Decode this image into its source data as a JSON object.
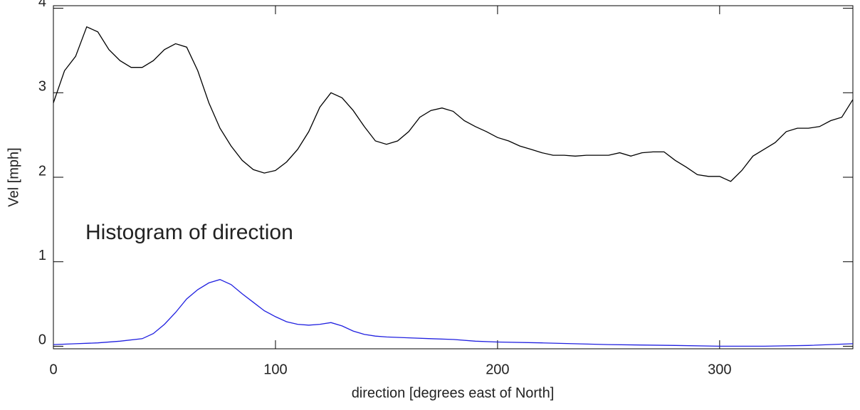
{
  "chart_data": {
    "type": "line",
    "xlabel": "direction [degrees east of North]",
    "ylabel": "Vel [mph]",
    "annotation": "Histogram of direction",
    "annotation_color": "#2020e0",
    "xlim": [
      0,
      360
    ],
    "xticks": [
      0,
      100,
      200,
      300
    ],
    "ylim": [
      -0.03,
      4.03
    ],
    "yticks": [
      0,
      1,
      2,
      3,
      4
    ],
    "series": [
      {
        "color": "#000000",
        "x": [
          0,
          5,
          10,
          15,
          20,
          25,
          30,
          35,
          40,
          45,
          50,
          55,
          60,
          65,
          70,
          75,
          80,
          85,
          90,
          95,
          100,
          105,
          110,
          115,
          120,
          125,
          130,
          135,
          140,
          145,
          150,
          155,
          160,
          165,
          170,
          175,
          180,
          185,
          190,
          195,
          200,
          205,
          210,
          215,
          220,
          225,
          230,
          235,
          240,
          245,
          250,
          255,
          260,
          265,
          270,
          275,
          280,
          285,
          290,
          295,
          300,
          305,
          310,
          315,
          320,
          325,
          330,
          335,
          340,
          345,
          350,
          355,
          360
        ],
        "values": [
          2.88,
          3.26,
          3.43,
          3.78,
          3.72,
          3.51,
          3.38,
          3.3,
          3.3,
          3.38,
          3.51,
          3.58,
          3.54,
          3.26,
          2.88,
          2.58,
          2.37,
          2.2,
          2.09,
          2.05,
          2.08,
          2.18,
          2.33,
          2.54,
          2.83,
          3.0,
          2.94,
          2.79,
          2.6,
          2.43,
          2.39,
          2.43,
          2.54,
          2.71,
          2.79,
          2.82,
          2.78,
          2.67,
          2.6,
          2.54,
          2.47,
          2.43,
          2.37,
          2.33,
          2.29,
          2.26,
          2.26,
          2.25,
          2.26,
          2.26,
          2.26,
          2.29,
          2.25,
          2.29,
          2.3,
          2.3,
          2.2,
          2.12,
          2.03,
          2.01,
          2.01,
          1.95,
          2.08,
          2.25,
          2.33,
          2.41,
          2.54,
          2.58,
          2.58,
          2.6,
          2.67,
          2.71,
          2.92
        ]
      },
      {
        "color": "#2020e0",
        "x": [
          0,
          10,
          20,
          30,
          40,
          45,
          50,
          55,
          60,
          65,
          70,
          75,
          80,
          85,
          90,
          95,
          100,
          105,
          110,
          115,
          120,
          125,
          130,
          135,
          140,
          145,
          150,
          160,
          170,
          180,
          190,
          200,
          220,
          250,
          280,
          300,
          320,
          340,
          360
        ],
        "values": [
          0.02,
          0.03,
          0.04,
          0.06,
          0.09,
          0.15,
          0.26,
          0.4,
          0.56,
          0.67,
          0.75,
          0.79,
          0.73,
          0.62,
          0.52,
          0.42,
          0.35,
          0.29,
          0.26,
          0.25,
          0.26,
          0.28,
          0.24,
          0.18,
          0.14,
          0.12,
          0.11,
          0.1,
          0.09,
          0.08,
          0.06,
          0.05,
          0.04,
          0.02,
          0.01,
          0,
          0,
          0.01,
          0.03
        ]
      }
    ]
  }
}
